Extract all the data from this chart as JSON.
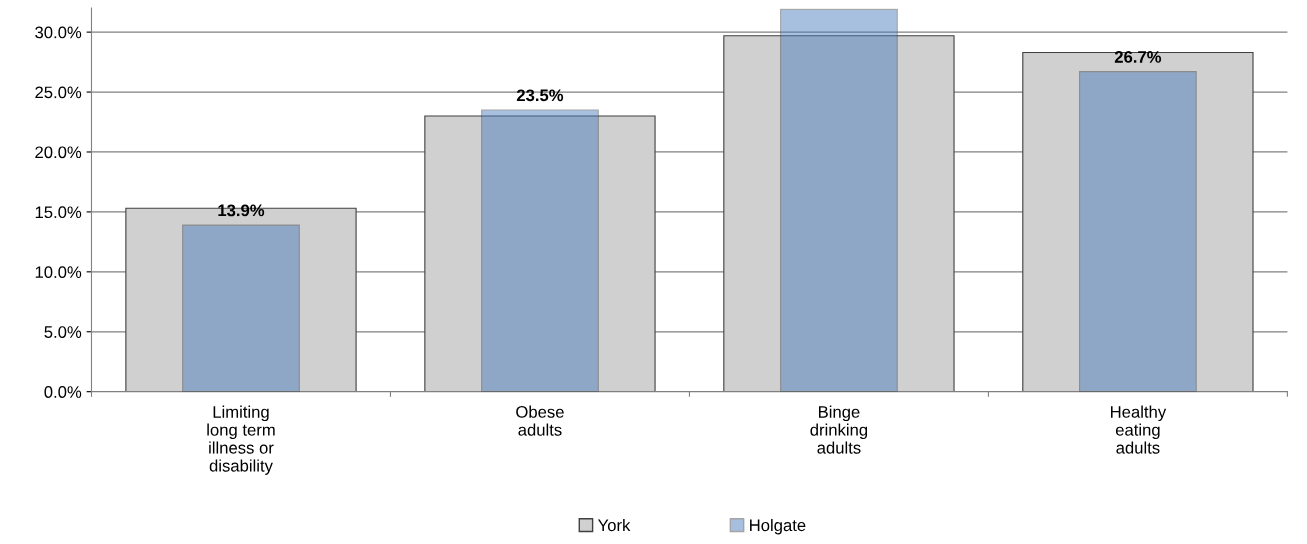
{
  "chart_data": {
    "type": "bar",
    "categories": [
      "Limiting\nlong term\nillness or\ndisability",
      "Obese\nadults",
      "Binge\ndrinking\nadults",
      "Healthy\neating\nadults"
    ],
    "series": [
      {
        "name": "York",
        "color": "#d0d0d0",
        "values": [
          15.3,
          23.0,
          29.7,
          28.3
        ]
      },
      {
        "name": "Holgate",
        "color": "#4479bd",
        "values": [
          13.9,
          23.5,
          31.9,
          26.7
        ],
        "value_labels": [
          "13.9%",
          "23.5%",
          null,
          "26.7%"
        ]
      }
    ],
    "ylim": [
      0,
      32
    ],
    "yticks": [
      {
        "value": 0,
        "label": "0.0%"
      },
      {
        "value": 5,
        "label": "5.0%"
      },
      {
        "value": 10,
        "label": "10.0%"
      },
      {
        "value": 15,
        "label": "15.0%"
      },
      {
        "value": 20,
        "label": "20.0%"
      },
      {
        "value": 25,
        "label": "25.0%"
      },
      {
        "value": 30,
        "label": "30.0%"
      }
    ],
    "grid": "y",
    "legend": "bottom"
  }
}
